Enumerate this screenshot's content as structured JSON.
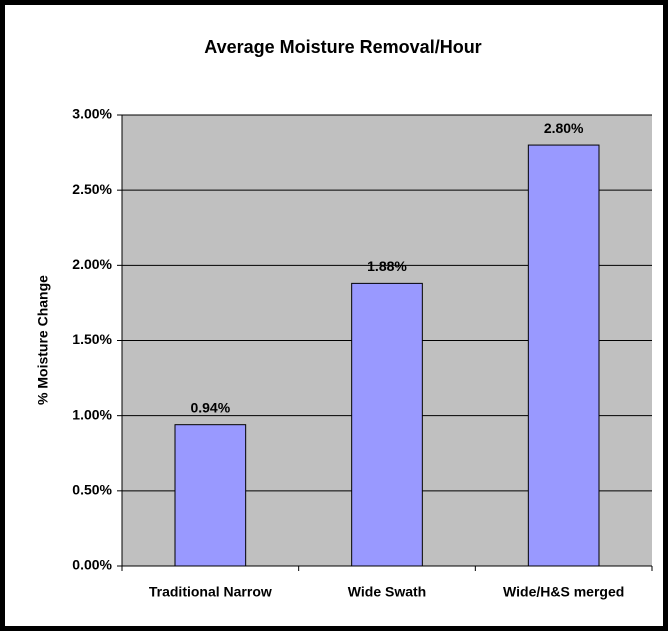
{
  "chart_data": {
    "type": "bar",
    "title": "Average Moisture Removal/Hour",
    "y_label": "% Moisture Change",
    "categories": [
      "Traditional Narrow",
      "Wide Swath",
      "Wide/H&S merged"
    ],
    "values": [
      0.94,
      1.88,
      2.8
    ],
    "value_labels": [
      "0.94%",
      "1.88%",
      "2.80%"
    ],
    "color": "#9999ff",
    "ylim": [
      0,
      3
    ],
    "yticks": [
      {
        "value": 0,
        "label": "0.00%"
      },
      {
        "value": 0.5,
        "label": "0.50%"
      },
      {
        "value": 1,
        "label": "1.00%"
      },
      {
        "value": 1.5,
        "label": "1.50%"
      },
      {
        "value": 2,
        "label": "2.00%"
      },
      {
        "value": 2.5,
        "label": "2.50%"
      },
      {
        "value": 3,
        "label": "3.00%"
      }
    ],
    "grid": true
  }
}
